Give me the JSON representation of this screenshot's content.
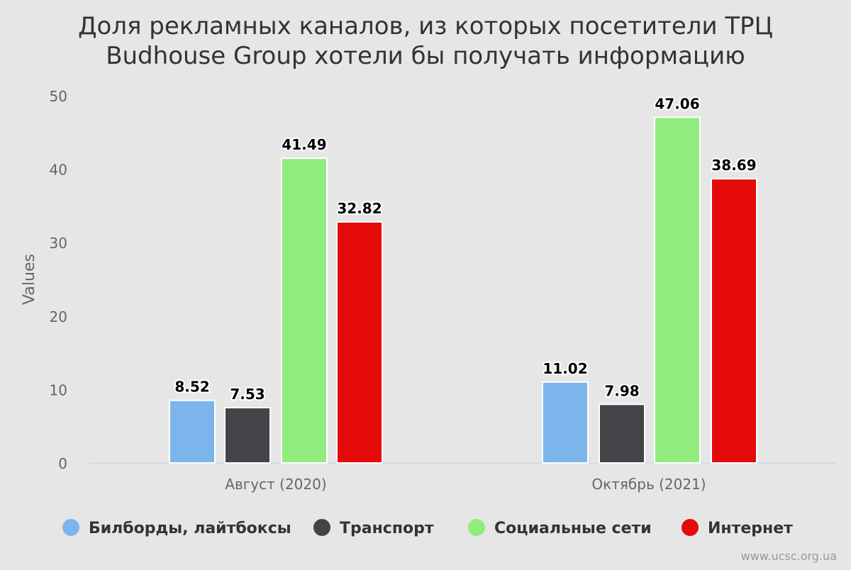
{
  "chart_data": {
    "type": "bar",
    "title_lines": [
      "Доля рекламных каналов, из которых посетители ТРЦ",
      "Budhouse Group хотели бы получать информацию"
    ],
    "xlabel": "",
    "ylabel": "Values",
    "ylim": [
      0,
      50
    ],
    "yticks": [
      0,
      10,
      20,
      30,
      40,
      50
    ],
    "grid": false,
    "legend_position": "bottom",
    "categories": [
      "Август (2020)",
      "Октябрь (2021)"
    ],
    "series": [
      {
        "name": "Билборды, лайтбоксы",
        "color": "#7cb5ec",
        "values": [
          8.52,
          11.02
        ]
      },
      {
        "name": "Транспорт",
        "color": "#434348",
        "values": [
          7.53,
          7.98
        ]
      },
      {
        "name": "Социальные сети",
        "color": "#90ed7d",
        "values": [
          41.49,
          47.06
        ]
      },
      {
        "name": "Интернет",
        "color": "#e50b0b",
        "values": [
          32.82,
          38.69
        ]
      }
    ],
    "credit": "www.ucsc.org.ua"
  }
}
